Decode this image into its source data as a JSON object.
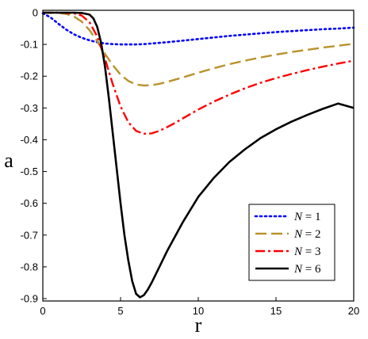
{
  "chart_data": {
    "type": "line",
    "title": "",
    "xlabel": "r",
    "ylabel": "a",
    "xlim": [
      0,
      20
    ],
    "ylim": [
      -0.9,
      0
    ],
    "xticks": [
      0,
      5,
      10,
      15,
      20
    ],
    "yticks": [
      0,
      -0.1,
      -0.2,
      -0.3,
      -0.4,
      -0.5,
      -0.6,
      -0.7,
      -0.8,
      -0.9
    ],
    "xtick_labels": [
      "0",
      "5",
      "10",
      "15",
      "20"
    ],
    "ytick_labels": [
      "0",
      "-0.1",
      "-0.2",
      "-0.3",
      "-0.4",
      "-0.5",
      "-0.6",
      "-0.7",
      "-0.8",
      "-0.9"
    ],
    "grid": false,
    "legend_position": "bottom-right",
    "series": [
      {
        "name": "N = 1",
        "legend_parts": [
          "N",
          " = 1"
        ],
        "color": "#0000ff",
        "style": "dotted",
        "x": [
          0,
          0.5,
          1,
          1.5,
          2,
          2.5,
          3,
          3.5,
          4,
          4.5,
          5,
          5.5,
          6,
          6.5,
          7,
          8,
          9,
          10,
          11,
          12,
          13,
          14,
          15,
          16,
          17,
          18,
          19,
          20
        ],
        "y": [
          -0.002,
          -0.015,
          -0.035,
          -0.053,
          -0.068,
          -0.079,
          -0.087,
          -0.093,
          -0.097,
          -0.099,
          -0.1,
          -0.1,
          -0.1,
          -0.099,
          -0.097,
          -0.093,
          -0.088,
          -0.083,
          -0.078,
          -0.073,
          -0.069,
          -0.065,
          -0.061,
          -0.058,
          -0.055,
          -0.052,
          -0.05,
          -0.047
        ]
      },
      {
        "name": "N = 2",
        "legend_parts": [
          "N",
          " = 2"
        ],
        "color": "#b8922a",
        "style": "dashed",
        "x": [
          0,
          1,
          1.5,
          2,
          2.5,
          3,
          3.5,
          4,
          4.5,
          5,
          5.5,
          6,
          6.5,
          7,
          7.5,
          8,
          9,
          10,
          11,
          12,
          13,
          14,
          15,
          16,
          17,
          18,
          19,
          20
        ],
        "y": [
          0,
          -0.001,
          -0.004,
          -0.012,
          -0.028,
          -0.055,
          -0.09,
          -0.13,
          -0.165,
          -0.195,
          -0.215,
          -0.226,
          -0.229,
          -0.228,
          -0.224,
          -0.218,
          -0.204,
          -0.189,
          -0.175,
          -0.162,
          -0.151,
          -0.141,
          -0.132,
          -0.124,
          -0.117,
          -0.11,
          -0.104,
          -0.098
        ]
      },
      {
        "name": "N = 3",
        "legend_parts": [
          "N",
          " = 3"
        ],
        "color": "#ff0000",
        "style": "dashdot",
        "x": [
          0,
          1,
          2,
          2.5,
          3,
          3.5,
          4,
          4.5,
          5,
          5.5,
          6,
          6.5,
          7,
          7.5,
          8,
          8.5,
          9,
          10,
          11,
          12,
          13,
          14,
          15,
          16,
          17,
          18,
          19,
          20
        ],
        "y": [
          0,
          0,
          -0.002,
          -0.009,
          -0.03,
          -0.075,
          -0.145,
          -0.225,
          -0.295,
          -0.345,
          -0.372,
          -0.381,
          -0.38,
          -0.372,
          -0.36,
          -0.347,
          -0.333,
          -0.305,
          -0.28,
          -0.258,
          -0.238,
          -0.221,
          -0.206,
          -0.193,
          -0.181,
          -0.17,
          -0.16,
          -0.151
        ]
      },
      {
        "name": "N = 6",
        "legend_parts": [
          "N",
          " = 6"
        ],
        "color": "#000000",
        "style": "solid",
        "x": [
          0,
          1,
          2,
          2.5,
          3,
          3.25,
          3.5,
          3.75,
          4,
          4.25,
          4.5,
          4.75,
          5,
          5.25,
          5.5,
          5.75,
          6,
          6.25,
          6.5,
          6.75,
          7,
          7.5,
          8,
          9,
          10,
          11,
          12,
          13,
          14,
          15,
          16,
          17,
          18,
          19,
          20
        ],
        "y": [
          0,
          0,
          0,
          -0.001,
          -0.006,
          -0.018,
          -0.045,
          -0.095,
          -0.17,
          -0.27,
          -0.38,
          -0.49,
          -0.6,
          -0.7,
          -0.78,
          -0.845,
          -0.885,
          -0.896,
          -0.889,
          -0.872,
          -0.85,
          -0.8,
          -0.75,
          -0.66,
          -0.58,
          -0.52,
          -0.47,
          -0.43,
          -0.395,
          -0.367,
          -0.343,
          -0.322,
          -0.303,
          -0.286,
          -0.3
        ]
      }
    ]
  }
}
